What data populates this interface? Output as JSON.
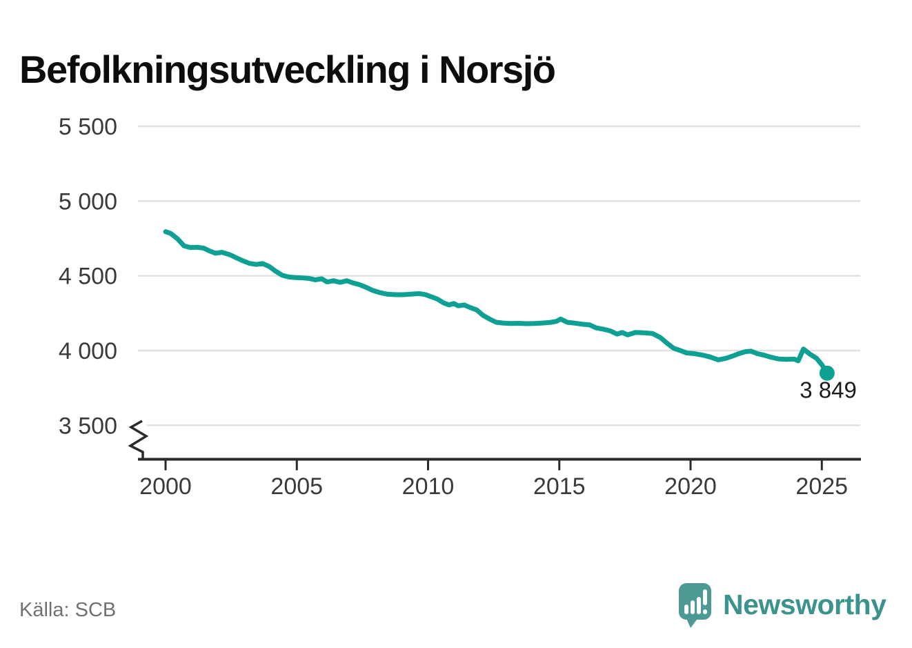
{
  "title": "Befolkningsutveckling i Norsjö",
  "source": "Källa: SCB",
  "branding": {
    "name": "Newsworthy",
    "icon": "newsworthy-bubble-barchart-icon",
    "icon_color": "#4c9a93",
    "wordmark_color": "#3b938c"
  },
  "theme": {
    "line_color": "#0fa094",
    "grid_color": "#e1e1e1",
    "axis_color": "#2a2a2a",
    "tick_label_color": "#3a3a3a",
    "end_label_color": "#1c1c1c"
  },
  "chart_data": {
    "type": "line",
    "title": "Befolkningsutveckling i Norsjö",
    "xlabel": "",
    "ylabel": "",
    "legend": "none",
    "grid": "horizontal",
    "axis_break_bottom": true,
    "ylim": [
      3500,
      5500
    ],
    "x_range": [
      2000,
      2025.2
    ],
    "x_ticks": [
      2000,
      2005,
      2010,
      2015,
      2020,
      2025
    ],
    "y_ticks": [
      {
        "value": 5500,
        "label": "5 500"
      },
      {
        "value": 5000,
        "label": "5 000"
      },
      {
        "value": 4500,
        "label": "4 500"
      },
      {
        "value": 4000,
        "label": "4 000"
      },
      {
        "value": 3500,
        "label": "3 500"
      }
    ],
    "end_label": "3 849",
    "end_value": 3849,
    "series": [
      {
        "name": "Befolkning i Norsjö",
        "points": [
          [
            2000.0,
            4795
          ],
          [
            2000.2,
            4783
          ],
          [
            2000.45,
            4748
          ],
          [
            2000.7,
            4701
          ],
          [
            2000.95,
            4689
          ],
          [
            2001.2,
            4691
          ],
          [
            2001.45,
            4685
          ],
          [
            2001.65,
            4668
          ],
          [
            2001.9,
            4651
          ],
          [
            2002.15,
            4657
          ],
          [
            2002.45,
            4641
          ],
          [
            2002.7,
            4620
          ],
          [
            2002.95,
            4600
          ],
          [
            2003.2,
            4583
          ],
          [
            2003.45,
            4576
          ],
          [
            2003.7,
            4582
          ],
          [
            2003.95,
            4562
          ],
          [
            2004.2,
            4530
          ],
          [
            2004.45,
            4503
          ],
          [
            2004.7,
            4492
          ],
          [
            2004.95,
            4488
          ],
          [
            2005.2,
            4486
          ],
          [
            2005.45,
            4483
          ],
          [
            2005.7,
            4473
          ],
          [
            2005.95,
            4480
          ],
          [
            2006.15,
            4459
          ],
          [
            2006.4,
            4467
          ],
          [
            2006.65,
            4456
          ],
          [
            2006.9,
            4467
          ],
          [
            2007.15,
            4452
          ],
          [
            2007.4,
            4440
          ],
          [
            2007.65,
            4422
          ],
          [
            2007.9,
            4402
          ],
          [
            2008.15,
            4388
          ],
          [
            2008.45,
            4377
          ],
          [
            2008.75,
            4374
          ],
          [
            2009.05,
            4374
          ],
          [
            2009.35,
            4377
          ],
          [
            2009.65,
            4381
          ],
          [
            2009.9,
            4374
          ],
          [
            2010.1,
            4361
          ],
          [
            2010.35,
            4345
          ],
          [
            2010.6,
            4318
          ],
          [
            2010.8,
            4305
          ],
          [
            2010.98,
            4315
          ],
          [
            2011.15,
            4299
          ],
          [
            2011.38,
            4305
          ],
          [
            2011.6,
            4288
          ],
          [
            2011.85,
            4272
          ],
          [
            2012.1,
            4235
          ],
          [
            2012.35,
            4210
          ],
          [
            2012.6,
            4189
          ],
          [
            2012.85,
            4184
          ],
          [
            2013.15,
            4181
          ],
          [
            2013.45,
            4182
          ],
          [
            2013.75,
            4180
          ],
          [
            2014.05,
            4181
          ],
          [
            2014.35,
            4184
          ],
          [
            2014.65,
            4188
          ],
          [
            2014.9,
            4196
          ],
          [
            2015.05,
            4211
          ],
          [
            2015.3,
            4189
          ],
          [
            2015.6,
            4183
          ],
          [
            2015.9,
            4176
          ],
          [
            2016.15,
            4172
          ],
          [
            2016.4,
            4152
          ],
          [
            2016.7,
            4142
          ],
          [
            2016.95,
            4131
          ],
          [
            2017.2,
            4110
          ],
          [
            2017.4,
            4121
          ],
          [
            2017.6,
            4105
          ],
          [
            2017.9,
            4121
          ],
          [
            2018.2,
            4119
          ],
          [
            2018.55,
            4114
          ],
          [
            2018.85,
            4087
          ],
          [
            2019.1,
            4050
          ],
          [
            2019.35,
            4016
          ],
          [
            2019.6,
            4001
          ],
          [
            2019.85,
            3984
          ],
          [
            2020.15,
            3979
          ],
          [
            2020.45,
            3970
          ],
          [
            2020.75,
            3957
          ],
          [
            2021.05,
            3938
          ],
          [
            2021.35,
            3948
          ],
          [
            2021.6,
            3963
          ],
          [
            2021.85,
            3980
          ],
          [
            2022.1,
            3993
          ],
          [
            2022.3,
            3996
          ],
          [
            2022.55,
            3979
          ],
          [
            2022.8,
            3969
          ],
          [
            2023.05,
            3956
          ],
          [
            2023.35,
            3944
          ],
          [
            2023.65,
            3941
          ],
          [
            2023.95,
            3943
          ],
          [
            2024.1,
            3931
          ],
          [
            2024.3,
            4010
          ],
          [
            2024.55,
            3976
          ],
          [
            2024.8,
            3948
          ],
          [
            2025.0,
            3906
          ],
          [
            2025.2,
            3849
          ]
        ]
      }
    ]
  }
}
